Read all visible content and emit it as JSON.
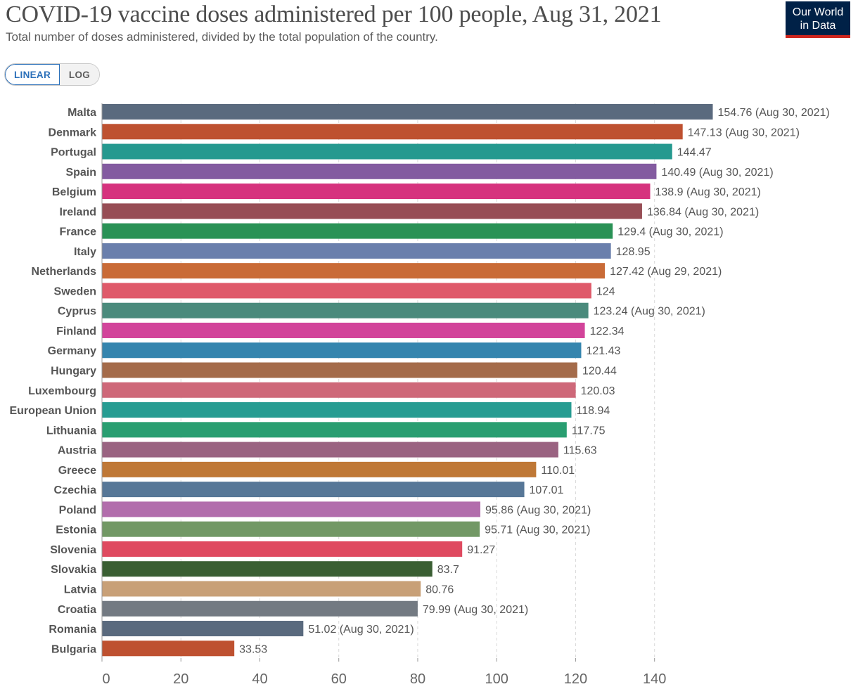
{
  "header": {
    "title": "COVID-19 vaccine doses administered per 100 people, Aug 31, 2021",
    "subtitle": "Total number of doses administered, divided by the total population of the country.",
    "logo_line1": "Our World",
    "logo_line2": "in Data"
  },
  "controls": {
    "linear_label": "LINEAR",
    "log_label": "LOG",
    "selected": "LINEAR"
  },
  "chart_data": {
    "type": "bar",
    "orientation": "horizontal",
    "title": "COVID-19 vaccine doses administered per 100 people, Aug 31, 2021",
    "xlabel": "",
    "ylabel": "",
    "xlim": [
      0,
      155
    ],
    "xticks": [
      0,
      20,
      40,
      60,
      80,
      100,
      120,
      140
    ],
    "grid": true,
    "categories": [
      "Malta",
      "Denmark",
      "Portugal",
      "Spain",
      "Belgium",
      "Ireland",
      "France",
      "Italy",
      "Netherlands",
      "Sweden",
      "Cyprus",
      "Finland",
      "Germany",
      "Hungary",
      "Luxembourg",
      "European Union",
      "Lithuania",
      "Austria",
      "Greece",
      "Czechia",
      "Poland",
      "Estonia",
      "Slovenia",
      "Slovakia",
      "Latvia",
      "Croatia",
      "Romania",
      "Bulgaria"
    ],
    "values": [
      154.76,
      147.13,
      144.47,
      140.49,
      138.9,
      136.84,
      129.4,
      128.95,
      127.42,
      124,
      123.24,
      122.34,
      121.43,
      120.44,
      120.03,
      118.94,
      117.75,
      115.63,
      110.01,
      107.01,
      95.86,
      95.71,
      91.27,
      83.7,
      80.76,
      79.99,
      51.02,
      33.53
    ],
    "labels": [
      "154.76 (Aug 30, 2021)",
      "147.13 (Aug 30, 2021)",
      "144.47",
      "140.49 (Aug 30, 2021)",
      "138.9 (Aug 30, 2021)",
      "136.84 (Aug 30, 2021)",
      "129.4 (Aug 30, 2021)",
      "128.95",
      "127.42 (Aug 29, 2021)",
      "124",
      "123.24 (Aug 30, 2021)",
      "122.34",
      "121.43",
      "120.44",
      "120.03",
      "118.94",
      "117.75",
      "115.63",
      "110.01",
      "107.01",
      "95.86 (Aug 30, 2021)",
      "95.71 (Aug 30, 2021)",
      "91.27",
      "83.7",
      "80.76",
      "79.99 (Aug 30, 2021)",
      "51.02 (Aug 30, 2021)",
      "33.53"
    ],
    "colors": [
      "#5a6a7e",
      "#be5130",
      "#25998f",
      "#835ba0",
      "#d6337e",
      "#974d55",
      "#2a9256",
      "#6a7fac",
      "#c96b37",
      "#df5a6a",
      "#4a8a7c",
      "#d2449a",
      "#3585ae",
      "#a46b4a",
      "#ce6879",
      "#279c92",
      "#299e71",
      "#9a6381",
      "#bf7836",
      "#577797",
      "#b26dac",
      "#729865",
      "#df4a60",
      "#3a5f33",
      "#c8a077",
      "#737a82",
      "#5a6a7e",
      "#be5130"
    ]
  }
}
